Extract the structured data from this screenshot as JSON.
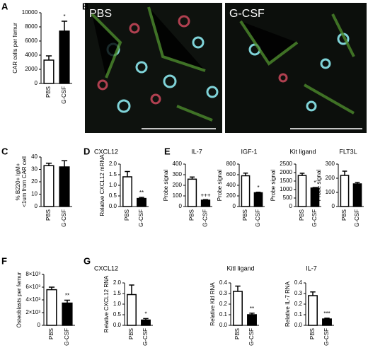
{
  "chart_data": [
    {
      "type": "bar",
      "panel": "A",
      "ylabel": "CAR cells per femur",
      "categories": [
        "PBS",
        "G-CSF"
      ],
      "values": [
        3300,
        7400
      ],
      "errors": [
        600,
        1400
      ],
      "significance": "*",
      "colors": [
        "#ffffff",
        "#000000"
      ],
      "ylim": [
        0,
        10000
      ],
      "yticks": [
        0,
        2000,
        4000,
        6000,
        8000,
        10000
      ]
    },
    {
      "type": "bar",
      "panel": "C",
      "ylabel": [
        "% B220+ IgM+",
        "<1um from CAR cell"
      ],
      "categories": [
        "PBS",
        "G-CSF"
      ],
      "values": [
        33,
        32
      ],
      "errors": [
        2,
        5
      ],
      "colors": [
        "#ffffff",
        "#000000"
      ],
      "ylim": [
        0,
        40
      ],
      "yticks": [
        0,
        10,
        20,
        30,
        40
      ]
    },
    {
      "type": "bar",
      "panel": "D",
      "title": "CXCL12",
      "ylabel": "Relative CXCL12 mRNA",
      "categories": [
        "PBS",
        "G-CSF"
      ],
      "values": [
        1.4,
        0.38
      ],
      "errors": [
        0.25,
        0.05
      ],
      "significance": "**",
      "colors": [
        "#ffffff",
        "#000000"
      ],
      "ylim": [
        0,
        2.0
      ],
      "yticks": [
        {
          "value": 0,
          "label": "0.0"
        },
        0.5,
        {
          "value": 1,
          "label": "1.0"
        },
        1.5,
        {
          "value": 2,
          "label": "2.0"
        }
      ]
    },
    {
      "type": "bar",
      "panel": "E",
      "title": "IL-7",
      "ylabel": "Probe signal",
      "categories": [
        "PBS",
        "G-CSF"
      ],
      "values": [
        258,
        60
      ],
      "errors": [
        20,
        5
      ],
      "significance": "+++",
      "colors": [
        "#ffffff",
        "#000000"
      ],
      "ylim": [
        0,
        400
      ],
      "yticks": [
        0,
        100,
        200,
        300,
        400
      ]
    },
    {
      "type": "bar",
      "title": "IGF-1",
      "ylabel": "Probe signal",
      "categories": [
        "PBS",
        "G-CSF"
      ],
      "values": [
        580,
        260
      ],
      "errors": [
        50,
        10
      ],
      "significance": "*",
      "colors": [
        "#ffffff",
        "#000000"
      ],
      "ylim": [
        0,
        800
      ],
      "yticks": [
        0,
        200,
        400,
        600,
        800
      ]
    },
    {
      "type": "bar",
      "title": "Kit ligand",
      "ylabel": "Probe signal",
      "categories": [
        "PBS",
        "G-CSF"
      ],
      "values": [
        1830,
        1090
      ],
      "errors": [
        130,
        30
      ],
      "significance": "*",
      "colors": [
        "#ffffff",
        "#000000"
      ],
      "ylim": [
        0,
        2500
      ],
      "yticks": [
        0,
        500,
        1000,
        1500,
        2000,
        2500
      ]
    },
    {
      "type": "bar",
      "title": "FLT3L",
      "ylabel": "Probe signal",
      "categories": [
        "PBS",
        "G-CSF"
      ],
      "values": [
        220,
        160
      ],
      "errors": [
        30,
        10
      ],
      "colors": [
        "#ffffff",
        "#000000"
      ],
      "ylim": [
        0,
        300
      ],
      "yticks": [
        0,
        100,
        200,
        300
      ]
    },
    {
      "type": "bar",
      "panel": "F",
      "ylabel": "Osteoblasts per femur",
      "categories": [
        "PBS",
        "G-CSF"
      ],
      "values": [
        5600,
        3500
      ],
      "errors": [
        400,
        450
      ],
      "significance": "**",
      "colors": [
        "#ffffff",
        "#000000"
      ],
      "ylim": [
        0,
        8000
      ],
      "yticks": [
        0,
        {
          "value": 2000,
          "label": "2×10³"
        },
        {
          "value": 4000,
          "label": "4×10³"
        },
        {
          "value": 6000,
          "label": "6×10³"
        },
        {
          "value": 8000,
          "label": "8×10³"
        }
      ]
    },
    {
      "type": "bar",
      "panel": "G",
      "title": "CXCL12",
      "ylabel": "Relative CXCL12 RNA",
      "categories": [
        "PBS",
        "G-CSF"
      ],
      "values": [
        1.45,
        0.25
      ],
      "errors": [
        0.45,
        0.07
      ],
      "significance": "*",
      "colors": [
        "#ffffff",
        "#000000"
      ],
      "ylim": [
        0,
        2.0
      ],
      "yticks": [
        {
          "value": 0,
          "label": "0.0"
        },
        0.5,
        {
          "value": 1,
          "label": "1.0"
        },
        1.5,
        {
          "value": 2,
          "label": "2.0"
        }
      ]
    },
    {
      "type": "bar",
      "title": "Kitl ligand",
      "ylabel": "Relative Kitl RNA",
      "categories": [
        "PBS",
        "G-CSF"
      ],
      "values": [
        0.32,
        0.1
      ],
      "errors": [
        0.05,
        0.015
      ],
      "significance": "**",
      "colors": [
        "#ffffff",
        "#000000"
      ],
      "ylim": [
        0,
        0.4
      ],
      "yticks": [
        {
          "value": 0,
          "label": "0.0"
        },
        0.1,
        0.2,
        0.3,
        0.4
      ]
    },
    {
      "type": "bar",
      "title": "IL-7",
      "ylabel": "Relative IL-7 RNA",
      "categories": [
        "PBS",
        "G-CSF"
      ],
      "values": [
        0.28,
        0.06
      ],
      "errors": [
        0.035,
        0.008
      ],
      "significance": "***",
      "colors": [
        "#ffffff",
        "#000000"
      ],
      "ylim": [
        0,
        0.4
      ],
      "yticks": [
        {
          "value": 0,
          "label": "0.0"
        },
        0.1,
        0.2,
        0.3,
        0.4
      ]
    }
  ],
  "images": {
    "panel": "B",
    "labels": [
      "PBS",
      "G-CSF"
    ]
  }
}
